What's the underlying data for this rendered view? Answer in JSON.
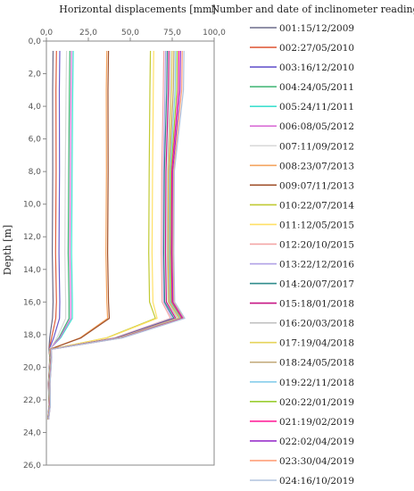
{
  "chart_data": {
    "type": "line",
    "title": "Horizontal displacements [mm]",
    "xlabel": "Horizontal displacements [mm]",
    "ylabel": "Depth [m]",
    "xlim": [
      0,
      100
    ],
    "ylim": [
      0,
      26
    ],
    "y_inverted": true,
    "x_axis_position": "top",
    "grid": false,
    "x_ticks": [
      "0,0",
      "25,0",
      "50,0",
      "75,0",
      "100,0"
    ],
    "x_tick_values": [
      0,
      25,
      50,
      75,
      100
    ],
    "y_ticks": [
      "0,0",
      "2,0",
      "4,0",
      "6,0",
      "8,0",
      "10,0",
      "12,0",
      "14,0",
      "16,0",
      "18,0",
      "20,0",
      "22,0",
      "24,0",
      "26,0"
    ],
    "y_tick_values": [
      0,
      2,
      4,
      6,
      8,
      10,
      12,
      14,
      16,
      18,
      20,
      22,
      24,
      26
    ],
    "legend_title": "Number and date of inclinometer readings",
    "legend_position": "right",
    "series": [
      {
        "name": "001:15/12/2009",
        "color": "#6b6b8a",
        "top": 4.0,
        "plateau": 3.5,
        "peak": 3.6
      },
      {
        "name": "002:27/05/2010",
        "color": "#e06040",
        "top": 6.0,
        "plateau": 5.5,
        "peak": 5.6
      },
      {
        "name": "003:16/12/2010",
        "color": "#6a5acd",
        "top": 8.0,
        "plateau": 7.5,
        "peak": 7.8
      },
      {
        "name": "004:24/05/2011",
        "color": "#3cb371",
        "top": 14.0,
        "plateau": 13.0,
        "peak": 13.5
      },
      {
        "name": "005:24/11/2011",
        "color": "#40e0d0",
        "top": 16.0,
        "plateau": 15.0,
        "peak": 15.5
      },
      {
        "name": "006:08/05/2012",
        "color": "#da70d6",
        "top": 15.0,
        "plateau": 14.0,
        "peak": 14.5
      },
      {
        "name": "007:11/09/2012",
        "color": "#d8d8d8",
        "top": 12.0,
        "plateau": 11.0,
        "peak": 11.5
      },
      {
        "name": "008:23/07/2013",
        "color": "#f4a460",
        "top": 36.0,
        "plateau": 35.5,
        "peak": 36.5
      },
      {
        "name": "009:07/11/2013",
        "color": "#a0522d",
        "top": 37.0,
        "plateau": 36.5,
        "peak": 37.5
      },
      {
        "name": "010:22/07/2014",
        "color": "#c0ca33",
        "top": 62.0,
        "plateau": 61.0,
        "peak": 65.0
      },
      {
        "name": "011:12/05/2015",
        "color": "#ffe066",
        "top": 64.0,
        "plateau": 63.0,
        "peak": 66.0
      },
      {
        "name": "012:20/10/2015",
        "color": "#f4a6a6",
        "top": 70.0,
        "plateau": 68.5,
        "peak": 74.0
      },
      {
        "name": "013:22/12/2016",
        "color": "#b0a0e6",
        "top": 71.0,
        "plateau": 69.5,
        "peak": 75.0
      },
      {
        "name": "014:20/07/2017",
        "color": "#2e8b8b",
        "top": 72.0,
        "plateau": 70.0,
        "peak": 76.0
      },
      {
        "name": "015:18/01/2018",
        "color": "#c71585",
        "top": 73.0,
        "plateau": 71.0,
        "peak": 77.0
      },
      {
        "name": "016:20/03/2018",
        "color": "#c0c0c0",
        "top": 74.0,
        "plateau": 72.0,
        "peak": 78.0
      },
      {
        "name": "017:19/04/2018",
        "color": "#e6d35a",
        "top": 75.0,
        "plateau": 72.5,
        "peak": 79.0
      },
      {
        "name": "018:24/05/2018",
        "color": "#c2a878",
        "top": 76.0,
        "plateau": 73.0,
        "peak": 79.5
      },
      {
        "name": "019:22/11/2018",
        "color": "#87ceeb",
        "top": 77.0,
        "plateau": 73.5,
        "peak": 80.0
      },
      {
        "name": "020:22/01/2019",
        "color": "#9acd32",
        "top": 78.0,
        "plateau": 74.0,
        "peak": 80.5
      },
      {
        "name": "021:19/02/2019",
        "color": "#ff1493",
        "top": 79.0,
        "plateau": 74.5,
        "peak": 81.0
      },
      {
        "name": "022:02/04/2019",
        "color": "#9932cc",
        "top": 80.0,
        "plateau": 75.0,
        "peak": 81.5
      },
      {
        "name": "023:30/04/2019",
        "color": "#ffa07a",
        "top": 81.0,
        "plateau": 75.5,
        "peak": 82.0
      },
      {
        "name": "024:16/10/2019",
        "color": "#b0c4de",
        "top": 82.0,
        "plateau": 76.0,
        "peak": 82.5
      }
    ]
  }
}
